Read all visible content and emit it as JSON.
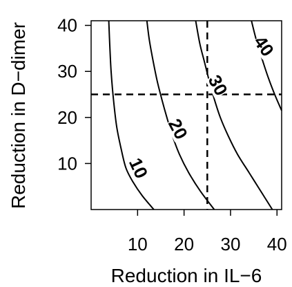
{
  "chart_data": {
    "type": "contour",
    "xlabel": "Reduction in IL−6",
    "ylabel": "Reduction in D−dimer",
    "xlim": [
      0,
      41
    ],
    "ylim": [
      0,
      41
    ],
    "xticks": [
      10,
      20,
      30,
      40
    ],
    "yticks": [
      10,
      20,
      30,
      40
    ],
    "xtick_labels": [
      "10",
      "20",
      "30",
      "40"
    ],
    "ytick_labels": [
      "10",
      "20",
      "30",
      "40"
    ],
    "grid": false,
    "reference_lines": [
      {
        "orientation": "vertical",
        "value": 25,
        "style": "dashed"
      },
      {
        "orientation": "horizontal",
        "value": 25,
        "style": "dashed"
      }
    ],
    "contours": [
      {
        "level": 10,
        "label": "10",
        "points": [
          [
            13.5,
            0
          ],
          [
            11,
            3
          ],
          [
            9,
            6
          ],
          [
            7.5,
            9
          ],
          [
            6.5,
            13
          ],
          [
            5.5,
            18
          ],
          [
            4.8,
            24
          ],
          [
            4.3,
            30
          ],
          [
            4,
            36
          ],
          [
            3.8,
            41
          ]
        ]
      },
      {
        "level": 20,
        "label": "20",
        "points": [
          [
            26.5,
            0
          ],
          [
            23.5,
            4
          ],
          [
            21,
            8
          ],
          [
            19,
            12
          ],
          [
            17.5,
            16
          ],
          [
            16.3,
            20
          ],
          [
            15.2,
            24
          ],
          [
            14.2,
            28
          ],
          [
            13.2,
            33
          ],
          [
            12.5,
            37
          ],
          [
            12,
            41
          ]
        ]
      },
      {
        "level": 30,
        "label": "30",
        "points": [
          [
            39,
            0
          ],
          [
            36.5,
            4
          ],
          [
            34,
            8
          ],
          [
            31.5,
            12
          ],
          [
            29.5,
            16
          ],
          [
            27.8,
            20
          ],
          [
            26.5,
            24
          ],
          [
            25.4,
            28
          ],
          [
            24.4,
            32
          ],
          [
            23.4,
            36
          ],
          [
            22.5,
            41
          ]
        ]
      },
      {
        "level": 40,
        "label": "40",
        "points": [
          [
            41,
            21.5
          ],
          [
            39.5,
            25
          ],
          [
            38,
            29
          ],
          [
            36.7,
            33
          ],
          [
            35.5,
            37
          ],
          [
            34.5,
            41
          ]
        ]
      }
    ],
    "contour_label_positions": [
      {
        "label": "10",
        "x": 10.2,
        "y": 9,
        "rotate": 65
      },
      {
        "label": "20",
        "x": 18.7,
        "y": 17.5,
        "rotate": 62
      },
      {
        "label": "30",
        "x": 27.3,
        "y": 27,
        "rotate": 62
      },
      {
        "label": "40",
        "x": 37.2,
        "y": 35.5,
        "rotate": 55
      }
    ]
  }
}
